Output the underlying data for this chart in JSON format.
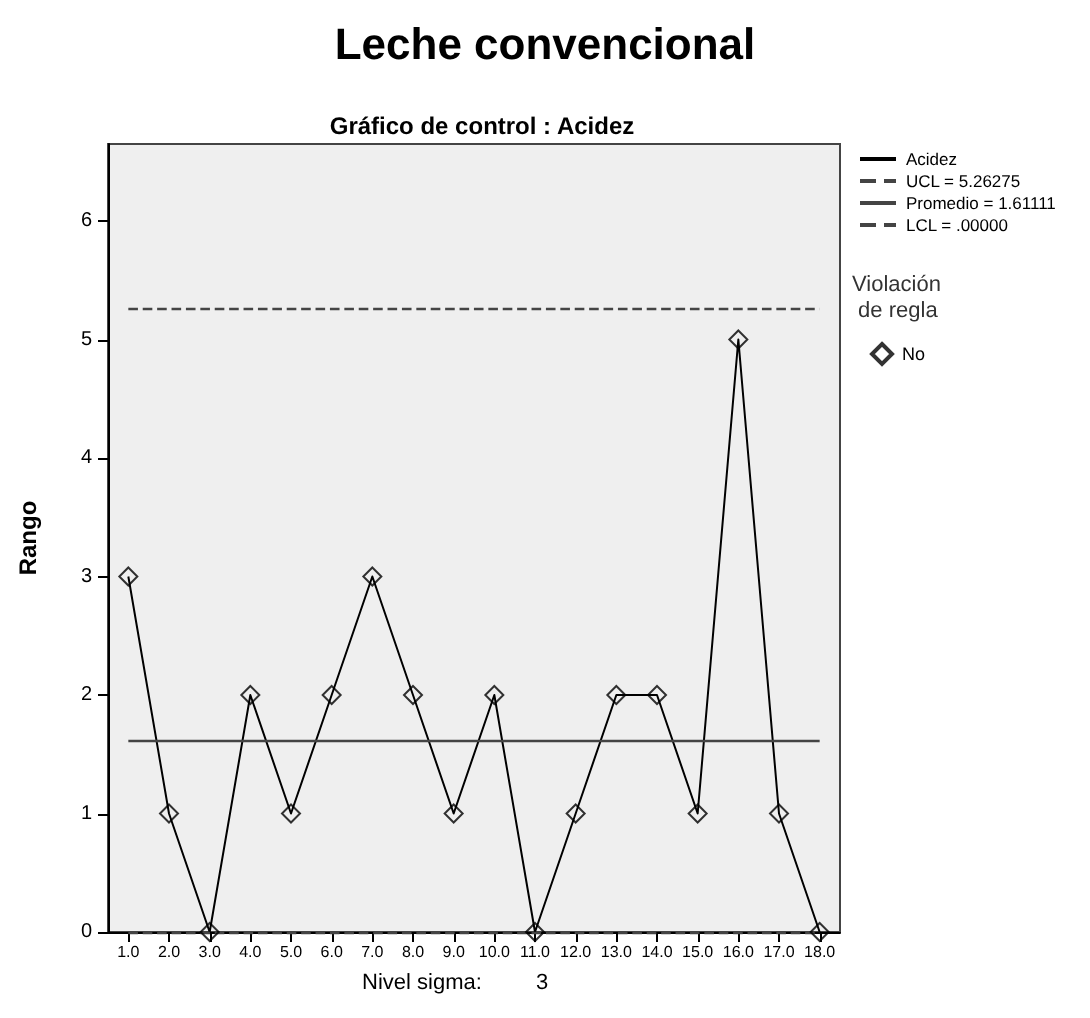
{
  "chart_data": {
    "type": "line",
    "title": "Leche convencional",
    "subtitle": "Gráfico de control : Acidez",
    "xlabel": "Nivel sigma:",
    "ylabel": "Rango",
    "legend_title": "Violación de regla",
    "annotations": [
      "3"
    ],
    "categories": [
      "1.0",
      "2.0",
      "3.0",
      "4.0",
      "5.0",
      "6.0",
      "7.0",
      "8.0",
      "9.0",
      "10.0",
      "11.0",
      "12.0",
      "13.0",
      "14.0",
      "15.0",
      "16.0",
      "17.0",
      "18.0"
    ],
    "series": [
      {
        "name": "Acidez",
        "color": "#000000",
        "marker": "none",
        "values": [
          3,
          1,
          0,
          2,
          1,
          2,
          3,
          2,
          1,
          2,
          0,
          1,
          2,
          2,
          1,
          5,
          1,
          0
        ]
      },
      {
        "name": "No",
        "type": "scatter",
        "color": "#000000",
        "marker": "diamond",
        "values": [
          3,
          1,
          0,
          2,
          1,
          2,
          3,
          2,
          1,
          2,
          0,
          1,
          2,
          2,
          1,
          5,
          1,
          0
        ]
      }
    ],
    "ref_lines": [
      {
        "axis": "y",
        "value": 5.26275,
        "label": "UCL = 5.26275",
        "line_style": "dashed",
        "color": "#444444"
      },
      {
        "axis": "y",
        "value": 1.61111,
        "label": "Promedio = 1.61111",
        "line_style": "solid",
        "color": "#444444"
      },
      {
        "axis": "y",
        "value": 0,
        "label": "LCL = .00000",
        "line_style": "dashed",
        "color": "#444444"
      }
    ],
    "ylim": [
      0,
      6.65
    ],
    "yticks": [
      0,
      1,
      2,
      3,
      4,
      5,
      6
    ],
    "grid": false,
    "legend": "right"
  }
}
